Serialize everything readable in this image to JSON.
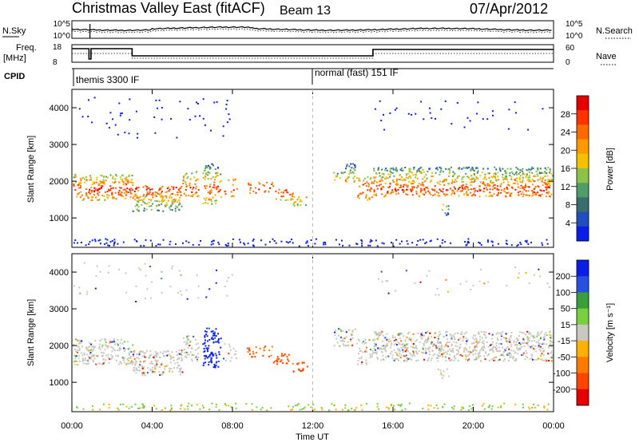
{
  "header": {
    "station_title": "Christmas Valley East (fitACF)",
    "beam_label": "Beam 13",
    "date": "07/Apr/2012"
  },
  "chart_data": [
    {
      "type": "line",
      "panel": "noise",
      "left_label": "N.Sky",
      "right_label": "N.Search",
      "left_ticks": [
        "10^5",
        "10^0"
      ],
      "right_ticks": [
        "10^5",
        "10^0"
      ]
    },
    {
      "type": "line",
      "panel": "frequency",
      "left_label": "Freq.",
      "left_unit": "[MHz]",
      "right_label": "Nave",
      "left_ticks": [
        "18",
        "8"
      ],
      "right_ticks": [
        "60",
        "0"
      ]
    },
    {
      "type": "table",
      "panel": "cpid",
      "label": "CPID",
      "modes": [
        {
          "name": "themis 3300 IF",
          "start_hour": 0
        },
        {
          "name": "normal (fast) 151 IF",
          "start_hour": 12
        }
      ]
    },
    {
      "type": "heatmap",
      "panel": "power",
      "ylabel": "Slant Range [km]",
      "ylim": [
        200,
        4500
      ],
      "yticks": [
        "4000",
        "3000",
        "2000",
        "1000"
      ],
      "colorbar_label": "Power [dB]",
      "colorbar_ticks": [
        "28",
        "24",
        "20",
        "16",
        "12",
        "8",
        "4"
      ],
      "colorbar_colors": [
        "#e60000",
        "#ff3300",
        "#ff6a00",
        "#ff9900",
        "#f2c200",
        "#8bc34a",
        "#4f9e6a",
        "#3a6e6e",
        "#1f4fbf",
        "#0a1ee6"
      ]
    },
    {
      "type": "heatmap",
      "panel": "velocity",
      "ylabel": "Slant Range [km]",
      "ylim": [
        200,
        4500
      ],
      "yticks": [
        "4000",
        "3000",
        "2000",
        "1000"
      ],
      "colorbar_label": "Velocity [m s⁻¹]",
      "colorbar_ticks": [
        "200",
        "100",
        "50",
        "15",
        "-15",
        "-50",
        "-100",
        "-200"
      ],
      "colorbar_colors": [
        "#0a1ee6",
        "#2850e0",
        "#3a9e3a",
        "#78d040",
        "#c8c8c0",
        "#ffb000",
        "#ff7a00",
        "#ff4400",
        "#e60000"
      ]
    }
  ],
  "time_axis": {
    "xlabel": "Time UT",
    "xlim_hours": [
      0,
      24
    ],
    "tick_labels": [
      "00:00",
      "04:00",
      "08:00",
      "12:00",
      "16:00",
      "20:00",
      "00:00"
    ]
  }
}
